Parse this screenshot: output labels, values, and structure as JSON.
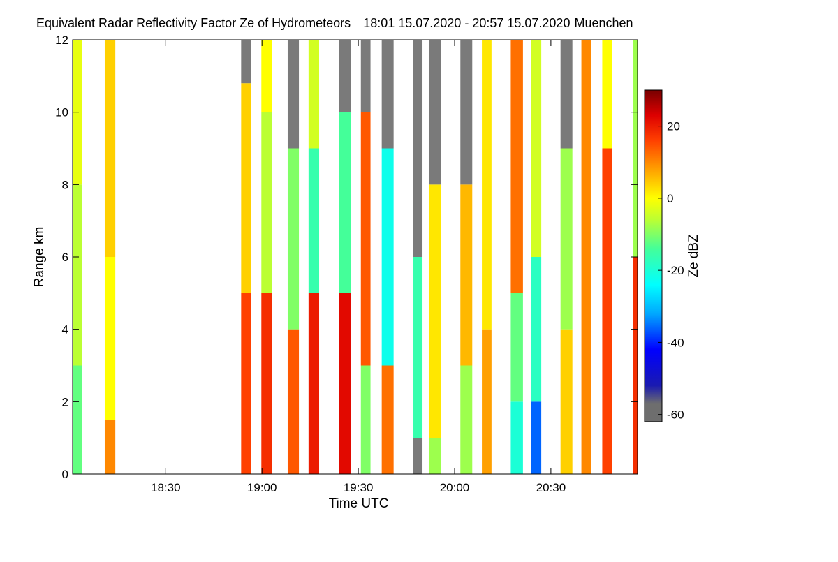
{
  "chart_data": {
    "type": "heatmap",
    "title": "Equivalent Radar Reflectivity Factor Ze of Hydrometeors",
    "period": "18:01 15.07.2020 - 20:57 15.07.2020",
    "location": "Muenchen",
    "xlabel": "Time UTC",
    "ylabel": "Range km",
    "x_unit": "minutes since 18:00 UTC",
    "xlim": [
      1,
      177
    ],
    "ylim": [
      0,
      12
    ],
    "xticks": [
      {
        "value": 30,
        "label": "18:30"
      },
      {
        "value": 60,
        "label": "19:00"
      },
      {
        "value": 90,
        "label": "19:30"
      },
      {
        "value": 120,
        "label": "20:00"
      },
      {
        "value": 150,
        "label": "20:30"
      }
    ],
    "yticks": [
      {
        "value": 0,
        "label": "0"
      },
      {
        "value": 2,
        "label": "2"
      },
      {
        "value": 4,
        "label": "4"
      },
      {
        "value": 6,
        "label": "6"
      },
      {
        "value": 8,
        "label": "8"
      },
      {
        "value": 10,
        "label": "10"
      },
      {
        "value": 12,
        "label": "12"
      }
    ],
    "colorbar": {
      "label": "Ze dBZ",
      "range": [
        -62,
        30
      ],
      "ticks": [
        {
          "value": 20,
          "label": "20"
        },
        {
          "value": 0,
          "label": "0"
        },
        {
          "value": -20,
          "label": "-20"
        },
        {
          "value": -40,
          "label": "-40"
        },
        {
          "value": -60,
          "label": "-60"
        }
      ],
      "colormap": [
        {
          "value": -62,
          "color": "#6e6e6e"
        },
        {
          "value": -57,
          "color": "#6e6e6e"
        },
        {
          "value": -52,
          "color": "#1a1ab0"
        },
        {
          "value": -42,
          "color": "#0000ff"
        },
        {
          "value": -32,
          "color": "#00a8ff"
        },
        {
          "value": -24,
          "color": "#00ffff"
        },
        {
          "value": -14,
          "color": "#44ff99"
        },
        {
          "value": -6,
          "color": "#bbff33"
        },
        {
          "value": 0,
          "color": "#ffff00"
        },
        {
          "value": 8,
          "color": "#ffa000"
        },
        {
          "value": 16,
          "color": "#ff4000"
        },
        {
          "value": 23,
          "color": "#dd0000"
        },
        {
          "value": 30,
          "color": "#780000"
        }
      ]
    },
    "no_signal_color": "#7a7a7a",
    "scans": [
      {
        "start": 1.0,
        "end": 4.0,
        "layers": [
          {
            "from": 0,
            "to": 3,
            "dbz": -12
          },
          {
            "from": 3,
            "to": 8,
            "dbz": -6
          },
          {
            "from": 8,
            "to": 12,
            "dbz": -2
          }
        ]
      },
      {
        "start": 11.0,
        "end": 14.3,
        "layers": [
          {
            "from": 0,
            "to": 1.5,
            "dbz": 10
          },
          {
            "from": 1.5,
            "to": 6,
            "dbz": 0
          },
          {
            "from": 6,
            "to": 12,
            "dbz": 4
          }
        ]
      },
      {
        "start": 53.5,
        "end": 56.5,
        "layers": [
          {
            "from": 0,
            "to": 5,
            "dbz": 16
          },
          {
            "from": 5,
            "to": 10.8,
            "dbz": 4
          },
          {
            "from": 10.8,
            "to": 12,
            "dbz": -60
          }
        ]
      },
      {
        "start": 59.8,
        "end": 63.2,
        "layers": [
          {
            "from": 0,
            "to": 5,
            "dbz": 18
          },
          {
            "from": 5,
            "to": 10,
            "dbz": -6
          },
          {
            "from": 10,
            "to": 12,
            "dbz": 0
          }
        ]
      },
      {
        "start": 68.0,
        "end": 71.5,
        "layers": [
          {
            "from": 0,
            "to": 4,
            "dbz": 14
          },
          {
            "from": 4,
            "to": 9,
            "dbz": -10
          },
          {
            "from": 9,
            "to": 12,
            "dbz": -60
          }
        ]
      },
      {
        "start": 74.5,
        "end": 77.8,
        "layers": [
          {
            "from": 0,
            "to": 5,
            "dbz": 20
          },
          {
            "from": 5,
            "to": 9,
            "dbz": -16
          },
          {
            "from": 9,
            "to": 12,
            "dbz": -4
          }
        ]
      },
      {
        "start": 84.0,
        "end": 87.8,
        "layers": [
          {
            "from": 0,
            "to": 5,
            "dbz": 22
          },
          {
            "from": 5,
            "to": 10,
            "dbz": -14
          },
          {
            "from": 10,
            "to": 12,
            "dbz": -60
          }
        ]
      },
      {
        "start": 90.8,
        "end": 93.8,
        "layers": [
          {
            "from": 0,
            "to": 3,
            "dbz": -10
          },
          {
            "from": 3,
            "to": 10,
            "dbz": 14
          },
          {
            "from": 10,
            "to": 12,
            "dbz": -60
          }
        ]
      },
      {
        "start": 97.3,
        "end": 101.0,
        "layers": [
          {
            "from": 0,
            "to": 3,
            "dbz": 12
          },
          {
            "from": 3,
            "to": 9,
            "dbz": -22
          },
          {
            "from": 9,
            "to": 12,
            "dbz": -60
          }
        ]
      },
      {
        "start": 107.0,
        "end": 110.0,
        "layers": [
          {
            "from": 0,
            "to": 1,
            "dbz": -60
          },
          {
            "from": 1,
            "to": 6,
            "dbz": -16
          },
          {
            "from": 6,
            "to": 12,
            "dbz": -60
          }
        ]
      },
      {
        "start": 112.0,
        "end": 115.8,
        "layers": [
          {
            "from": 0,
            "to": 1,
            "dbz": -8
          },
          {
            "from": 1,
            "to": 8,
            "dbz": 2
          },
          {
            "from": 8,
            "to": 12,
            "dbz": -60
          }
        ]
      },
      {
        "start": 121.8,
        "end": 125.5,
        "layers": [
          {
            "from": 0,
            "to": 3,
            "dbz": -8
          },
          {
            "from": 3,
            "to": 8,
            "dbz": 6
          },
          {
            "from": 8,
            "to": 12,
            "dbz": -60
          }
        ]
      },
      {
        "start": 128.5,
        "end": 131.5,
        "layers": [
          {
            "from": 0,
            "to": 4,
            "dbz": 8
          },
          {
            "from": 4,
            "to": 12,
            "dbz": 2
          }
        ]
      },
      {
        "start": 137.5,
        "end": 141.3,
        "layers": [
          {
            "from": 0,
            "to": 2,
            "dbz": -20
          },
          {
            "from": 2,
            "to": 5,
            "dbz": -12
          },
          {
            "from": 5,
            "to": 12,
            "dbz": 12
          }
        ]
      },
      {
        "start": 143.8,
        "end": 147.0,
        "layers": [
          {
            "from": 0,
            "to": 2,
            "dbz": -36
          },
          {
            "from": 2,
            "to": 6,
            "dbz": -18
          },
          {
            "from": 6,
            "to": 12,
            "dbz": -4
          }
        ]
      },
      {
        "start": 153.0,
        "end": 156.7,
        "layers": [
          {
            "from": 0,
            "to": 4,
            "dbz": 4
          },
          {
            "from": 4,
            "to": 9,
            "dbz": -8
          },
          {
            "from": 9,
            "to": 12,
            "dbz": -60
          }
        ]
      },
      {
        "start": 159.5,
        "end": 162.5,
        "layers": [
          {
            "from": 0,
            "to": 12,
            "dbz": 10
          }
        ]
      },
      {
        "start": 166.0,
        "end": 169.0,
        "layers": [
          {
            "from": 0,
            "to": 9,
            "dbz": 16
          },
          {
            "from": 9,
            "to": 12,
            "dbz": 0
          }
        ]
      },
      {
        "start": 175.5,
        "end": 177.0,
        "layers": [
          {
            "from": 0,
            "to": 6,
            "dbz": 18
          },
          {
            "from": 6,
            "to": 12,
            "dbz": -8
          }
        ]
      }
    ]
  }
}
